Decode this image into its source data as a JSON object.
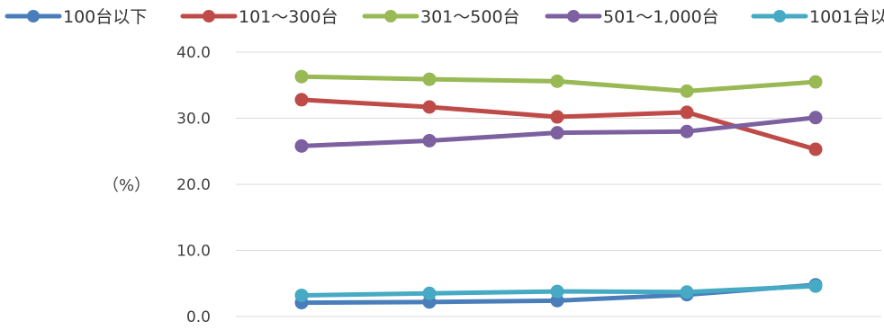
{
  "chart_data": {
    "type": "line",
    "title": "",
    "xlabel": "",
    "ylabel": "（%）",
    "ylim": [
      0,
      40
    ],
    "yticks": [
      "0.0",
      "10.0",
      "20.0",
      "30.0",
      "40.0"
    ],
    "categories": [
      "",
      "",
      "",
      "",
      ""
    ],
    "grid": true,
    "legend": "top",
    "series": [
      {
        "name": "100台以下",
        "color": "#4a7ebb",
        "values": [
          2.1,
          2.2,
          2.4,
          3.3,
          4.8
        ]
      },
      {
        "name": "101～300台",
        "color": "#be4b48",
        "values": [
          32.8,
          31.7,
          30.2,
          30.9,
          25.3
        ]
      },
      {
        "name": "301～500台",
        "color": "#98b954",
        "values": [
          36.3,
          35.9,
          35.6,
          34.1,
          35.5
        ]
      },
      {
        "name": "501～1,000台",
        "color": "#7d60a0",
        "values": [
          25.8,
          26.6,
          27.8,
          28.0,
          30.1
        ]
      },
      {
        "name": "1001台以上",
        "color": "#46aac5",
        "values": [
          3.2,
          3.5,
          3.8,
          3.7,
          4.6
        ]
      }
    ]
  }
}
